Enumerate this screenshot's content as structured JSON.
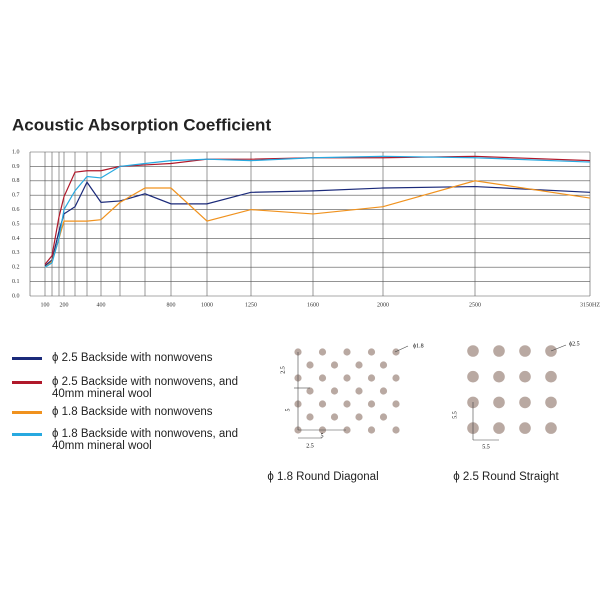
{
  "chart_data": {
    "type": "line",
    "title": "Acoustic Absorption Coefficient",
    "x": [
      100,
      125,
      160,
      200,
      250,
      315,
      400,
      500,
      630,
      800,
      1000,
      1250,
      1600,
      2000,
      2500,
      3150
    ],
    "xticks": [
      100,
      200,
      400,
      800,
      1000,
      1250,
      1600,
      2000,
      2500,
      {
        "value": 3150,
        "label": "3150HZ"
      }
    ],
    "ylim": [
      0,
      1
    ],
    "yticks": [
      {
        "value": 0,
        "label": "0.0"
      },
      0.1,
      0.2,
      0.3,
      0.4,
      0.5,
      0.6,
      0.7,
      0.8,
      0.9,
      {
        "value": 1,
        "label": "1.0"
      }
    ],
    "grid": true,
    "series": [
      {
        "name": "ϕ 2.5 Backside with nonwovens",
        "color": "#1b2a7a",
        "values": [
          0.21,
          0.25,
          0.45,
          0.57,
          0.62,
          0.79,
          0.65,
          0.66,
          0.71,
          0.64,
          0.64,
          0.72,
          0.73,
          0.75,
          0.76,
          0.72
        ]
      },
      {
        "name": "ϕ 2.5 Backside with nonwovens, and 40mm mineral wool",
        "color": "#b0182a",
        "values": [
          0.22,
          0.28,
          0.55,
          0.69,
          0.86,
          0.87,
          0.87,
          0.9,
          0.91,
          0.92,
          0.95,
          0.95,
          0.96,
          0.96,
          0.97,
          0.94
        ]
      },
      {
        "name": "ϕ 1.8 Backside with nonwovens",
        "color": "#f0921e",
        "values": [
          0.2,
          0.24,
          0.4,
          0.52,
          0.52,
          0.52,
          0.53,
          0.65,
          0.75,
          0.75,
          0.52,
          0.6,
          0.57,
          0.62,
          0.8,
          0.68
        ]
      },
      {
        "name": "ϕ 1.8 Backside with nonwovens, and 40mm mineral wool",
        "color": "#27a9e0",
        "values": [
          0.2,
          0.23,
          0.4,
          0.6,
          0.73,
          0.83,
          0.82,
          0.9,
          0.92,
          0.94,
          0.95,
          0.94,
          0.96,
          0.97,
          0.96,
          0.93
        ]
      }
    ]
  },
  "diagrams": [
    {
      "title": "ϕ 1.8 Round Diagonal",
      "labels": [
        "ϕ1.8",
        "2.5",
        "5",
        "5",
        "2.5"
      ]
    },
    {
      "title": "ϕ 2.5 Round Straight",
      "labels": [
        "ϕ2.5",
        "5.5",
        "5.5"
      ]
    }
  ]
}
